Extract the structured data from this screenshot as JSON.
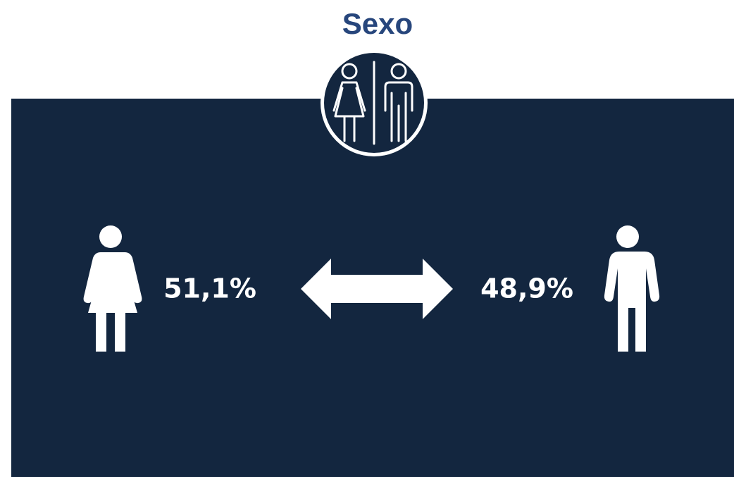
{
  "title": "Sexo",
  "items": [
    {
      "label": "51,1%"
    },
    {
      "label": "48,9%"
    }
  ]
}
